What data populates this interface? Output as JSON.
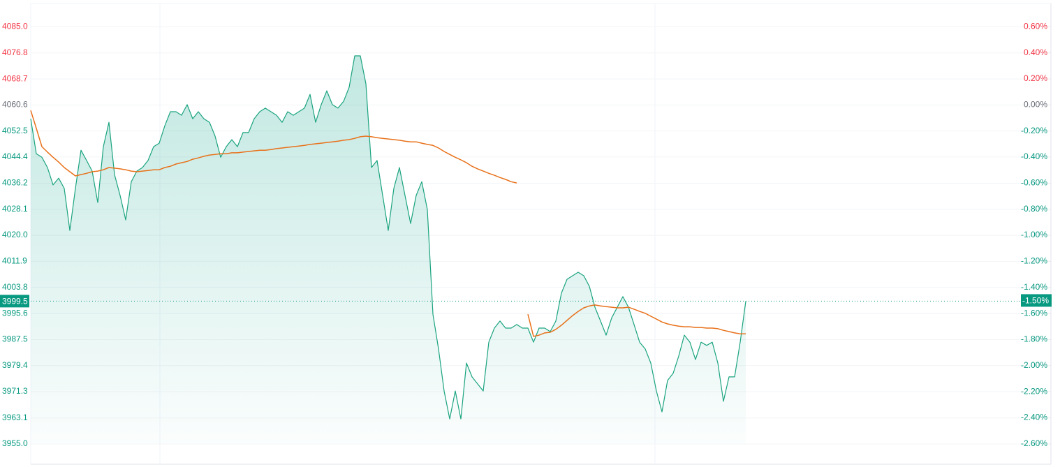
{
  "chart_data": {
    "type": "line",
    "xlim": [
      0,
      177
    ],
    "ylim": [
      3948.7,
      4092.2
    ],
    "y2lim": [
      -2.756,
      0.778
    ],
    "yticks": [
      {
        "value": 4085.0,
        "label": "4085.0"
      },
      {
        "value": 4076.8,
        "label": "4076.8"
      },
      {
        "value": 4068.7,
        "label": "4068.7"
      },
      {
        "value": 4060.6,
        "label": "4060.6"
      },
      {
        "value": 4052.5,
        "label": "4052.5"
      },
      {
        "value": 4044.4,
        "label": "4044.4"
      },
      {
        "value": 4036.2,
        "label": "4036.2"
      },
      {
        "value": 4028.1,
        "label": "4028.1"
      },
      {
        "value": 4020.0,
        "label": "4020.0"
      },
      {
        "value": 4011.9,
        "label": "4011.9"
      },
      {
        "value": 4003.8,
        "label": "4003.8"
      },
      {
        "value": 3995.6,
        "label": "3995.6"
      },
      {
        "value": 3987.5,
        "label": "3987.5"
      },
      {
        "value": 3979.4,
        "label": "3979.4"
      },
      {
        "value": 3971.3,
        "label": "3971.3"
      },
      {
        "value": 3963.1,
        "label": "3963.1"
      },
      {
        "value": 3955.0,
        "label": "3955.0"
      }
    ],
    "y2ticks": [
      {
        "value": 0.6,
        "label": "0.60%"
      },
      {
        "value": 0.4,
        "label": "0.40%"
      },
      {
        "value": 0.2,
        "label": "0.20%"
      },
      {
        "value": 0,
        "label": "0.00%"
      },
      {
        "value": -0.2,
        "label": "-0.20%"
      },
      {
        "value": -0.4,
        "label": "-0.40%"
      },
      {
        "value": -0.6,
        "label": "-0.60%"
      },
      {
        "value": -0.8,
        "label": "-0.80%"
      },
      {
        "value": -1.0,
        "label": "-1.00%"
      },
      {
        "value": -1.2,
        "label": "-1.20%"
      },
      {
        "value": -1.4,
        "label": "-1.40%"
      },
      {
        "value": -1.6,
        "label": "-1.60%"
      },
      {
        "value": -1.8,
        "label": "-1.80%"
      },
      {
        "value": -2.0,
        "label": "-2.00%"
      },
      {
        "value": -2.2,
        "label": "-2.20%"
      },
      {
        "value": -2.4,
        "label": "-2.40%"
      },
      {
        "value": -2.6,
        "label": "-2.60%"
      }
    ],
    "up_color": "#f23645",
    "flat_color": "#6a6d78",
    "down_color": "#089981",
    "grid": true,
    "last_price": {
      "value": 3999.5,
      "label": "3999.5"
    },
    "last_change": {
      "value": -1.5,
      "label": "-1.50%"
    },
    "series": [
      {
        "color": "#1aa37f",
        "area": true,
        "values": [
          4056.3,
          4045.4,
          4044.3,
          4041.1,
          4035.7,
          4037.8,
          4034.6,
          4021.5,
          4034.6,
          4046.5,
          4043.3,
          4040.0,
          4030.2,
          4047.6,
          4055.2,
          4038.9,
          4032.4,
          4024.8,
          4036.7,
          4040.0,
          4041.1,
          4043.3,
          4047.6,
          4048.7,
          4054.1,
          4058.5,
          4058.5,
          4057.4,
          4060.7,
          4056.3,
          4058.5,
          4056.3,
          4055.2,
          4050.9,
          4044.3,
          4047.6,
          4049.8,
          4047.6,
          4052.0,
          4052.0,
          4056.3,
          4058.5,
          4059.6,
          4058.5,
          4057.4,
          4055.2,
          4058.5,
          4057.4,
          4058.5,
          4059.6,
          4063.9,
          4055.2,
          4060.7,
          4065.0,
          4060.7,
          4059.6,
          4061.7,
          4066.1,
          4075.9,
          4075.9,
          4067.2,
          4041.1,
          4043.3,
          4032.4,
          4021.5,
          4034.6,
          4041.1,
          4032.4,
          4023.7,
          4032.4,
          4036.7,
          4028.0,
          3995.4,
          3984.6,
          3971.5,
          3962.8,
          3971.5,
          3962.8,
          3980.2,
          3975.9,
          3973.7,
          3971.5,
          3986.7,
          3991.1,
          3993.3,
          3991.1,
          3991.1,
          3992.2,
          3991.1,
          3991.1,
          3986.7,
          3991.1,
          3991.1,
          3990.0,
          3993.3,
          4002.0,
          4006.3,
          4007.4,
          4008.5,
          4007.4,
          4004.1,
          3997.6,
          3993.3,
          3988.9,
          3994.3,
          3997.6,
          4000.9,
          3997.6,
          3992.2,
          3986.7,
          3984.6,
          3980.2,
          3971.5,
          3965.0,
          3974.8,
          3977.0,
          3982.4,
          3988.9,
          3986.7,
          3981.3,
          3986.7,
          3985.7,
          3986.7,
          3980.2,
          3968.3,
          3975.9,
          3975.9,
          3986.7,
          3999.5
        ]
      },
      {
        "color": "#e8711a",
        "area": false,
        "values": [
          4058.9,
          4053.3,
          4047.6,
          4045.9,
          4044.3,
          4042.8,
          4041.1,
          4039.8,
          4038.5,
          4038.9,
          4039.3,
          4039.8,
          4040.0,
          4040.4,
          4041.1,
          4040.9,
          4040.7,
          4040.4,
          4040.0,
          4039.8,
          4040.0,
          4040.2,
          4040.4,
          4040.4,
          4041.1,
          4041.5,
          4042.2,
          4042.6,
          4043.0,
          4043.7,
          4044.1,
          4044.6,
          4045.0,
          4045.2,
          4045.4,
          4045.4,
          4045.7,
          4045.7,
          4045.9,
          4046.1,
          4046.3,
          4046.5,
          4046.5,
          4046.7,
          4047.0,
          4047.2,
          4047.4,
          4047.6,
          4047.8,
          4048.0,
          4048.3,
          4048.5,
          4048.7,
          4048.9,
          4049.1,
          4049.3,
          4049.6,
          4049.8,
          4050.2,
          4050.7,
          4050.9,
          4050.7,
          4050.4,
          4050.2,
          4050.0,
          4049.8,
          4049.6,
          4049.3,
          4049.1,
          4049.1,
          4048.7,
          4048.3,
          4048.0,
          4047.2,
          4046.1,
          4045.2,
          4044.3,
          4043.5,
          4042.6,
          4041.5,
          4040.7,
          4040.0,
          4039.3,
          4038.7,
          4038.0,
          4037.4,
          4036.7,
          4036.3,
          null,
          3995.4,
          3988.5,
          3988.9,
          3989.6,
          3989.8,
          3990.7,
          3992.0,
          3993.5,
          3995.0,
          3996.3,
          3997.4,
          3998.0,
          3998.3,
          3998.0,
          3997.8,
          3997.6,
          3997.4,
          3997.4,
          3997.6,
          3997.0,
          3996.3,
          3995.7,
          3994.8,
          3993.9,
          3993.0,
          3992.4,
          3992.0,
          3991.7,
          3991.5,
          3991.5,
          3991.3,
          3991.3,
          3991.1,
          3991.1,
          3990.9,
          3990.4,
          3990.0,
          3989.6,
          3989.3,
          3989.3
        ]
      }
    ]
  }
}
